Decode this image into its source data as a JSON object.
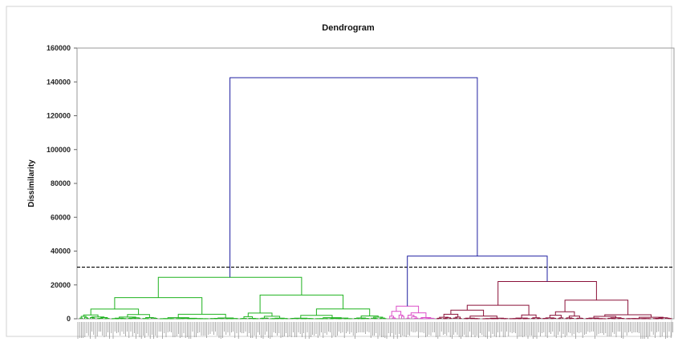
{
  "chart_data": {
    "type": "dendrogram",
    "title": "Dendrogram",
    "xlabel": "",
    "ylabel": "Dissimilarity",
    "ylim": [
      0,
      160000
    ],
    "yticks": [
      0,
      20000,
      40000,
      60000,
      80000,
      100000,
      120000,
      140000,
      160000
    ],
    "ytick_labels": [
      "0",
      "20000",
      "40000",
      "60000",
      "80000",
      "100000",
      "120000",
      "140000",
      "160000"
    ],
    "cut_line": 30500,
    "grid": false,
    "colors": {
      "root": "#1f1fa0",
      "cluster_1": "#1fb21f",
      "cluster_2": "#dc4fc8",
      "cluster_3": "#8a1038",
      "cut_line": "#000000"
    },
    "merges": [
      {
        "height": 142500,
        "cluster": "root"
      },
      {
        "height": 37000,
        "cluster": "root"
      },
      {
        "height": 24500,
        "cluster": "cluster_1"
      },
      {
        "height": 22000,
        "cluster": "cluster_3"
      },
      {
        "height": 14000,
        "cluster": "cluster_1"
      },
      {
        "height": 12500,
        "cluster": "cluster_1"
      },
      {
        "height": 11000,
        "cluster": "cluster_3"
      },
      {
        "height": 7500,
        "cluster": "cluster_2"
      }
    ],
    "clusters": [
      {
        "name": "cluster_1",
        "leaf_share": 0.52
      },
      {
        "name": "cluster_2",
        "leaf_share": 0.08
      },
      {
        "name": "cluster_3",
        "leaf_share": 0.4
      }
    ]
  }
}
